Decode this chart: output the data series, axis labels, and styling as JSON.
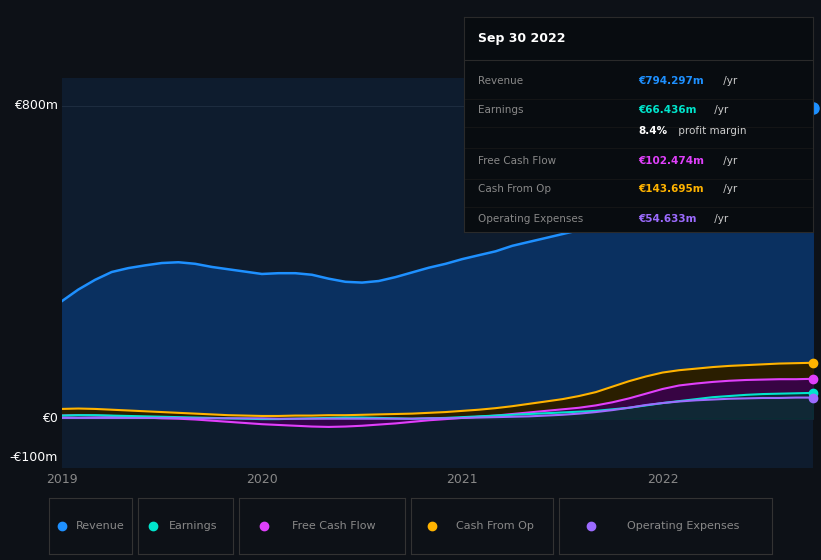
{
  "bg_color": "#0d1117",
  "plot_bg_color": "#0e1c2e",
  "grid_color": "#1e2d40",
  "text_color": "#888888",
  "white_color": "#ffffff",
  "series_colors": {
    "Revenue": "#1e90ff",
    "Revenue_fill": "#0a3060",
    "Earnings": "#00e5cc",
    "Earnings_fill": "#003830",
    "Free Cash Flow": "#e040fb",
    "Free Cash Flow_fill": "#3a0050",
    "Cash From Op": "#ffb300",
    "Cash From Op_fill": "#2a1e00",
    "Operating Expenses": "#9c6bff",
    "Operating Expenses_fill": "#1e0a40"
  },
  "x": [
    2019.0,
    2019.083,
    2019.167,
    2019.25,
    2019.333,
    2019.417,
    2019.5,
    2019.583,
    2019.667,
    2019.75,
    2019.833,
    2019.917,
    2020.0,
    2020.083,
    2020.167,
    2020.25,
    2020.333,
    2020.417,
    2020.5,
    2020.583,
    2020.667,
    2020.75,
    2020.833,
    2020.917,
    2021.0,
    2021.083,
    2021.167,
    2021.25,
    2021.333,
    2021.417,
    2021.5,
    2021.583,
    2021.667,
    2021.75,
    2021.833,
    2021.917,
    2022.0,
    2022.083,
    2022.167,
    2022.25,
    2022.333,
    2022.417,
    2022.5,
    2022.583,
    2022.667,
    2022.75
  ],
  "Revenue": [
    300,
    330,
    355,
    375,
    385,
    392,
    398,
    400,
    396,
    388,
    382,
    376,
    370,
    372,
    372,
    368,
    358,
    350,
    348,
    352,
    362,
    374,
    386,
    396,
    408,
    418,
    428,
    442,
    452,
    462,
    472,
    482,
    494,
    510,
    528,
    550,
    578,
    608,
    638,
    665,
    695,
    726,
    752,
    770,
    785,
    794
  ],
  "Earnings": [
    8,
    9,
    9,
    8,
    7,
    6,
    5,
    4,
    3,
    2,
    1,
    0,
    -1,
    -1,
    0,
    1,
    2,
    3,
    3,
    2,
    1,
    0,
    1,
    2,
    4,
    6,
    8,
    10,
    12,
    14,
    16,
    18,
    20,
    24,
    28,
    34,
    40,
    45,
    50,
    55,
    58,
    61,
    63,
    64,
    65,
    66
  ],
  "Free Cash Flow": [
    8,
    9,
    8,
    7,
    5,
    3,
    1,
    0,
    -2,
    -5,
    -8,
    -11,
    -14,
    -16,
    -18,
    -20,
    -21,
    -20,
    -18,
    -15,
    -12,
    -8,
    -4,
    -1,
    2,
    5,
    8,
    12,
    16,
    20,
    24,
    28,
    34,
    42,
    52,
    64,
    76,
    85,
    90,
    94,
    97,
    99,
    100,
    101,
    101,
    102
  ],
  "Cash From Op": [
    25,
    26,
    25,
    23,
    21,
    19,
    17,
    15,
    13,
    11,
    9,
    8,
    7,
    7,
    8,
    8,
    9,
    9,
    10,
    11,
    12,
    13,
    15,
    17,
    20,
    23,
    27,
    32,
    38,
    44,
    50,
    58,
    68,
    82,
    96,
    108,
    118,
    124,
    128,
    132,
    135,
    137,
    139,
    141,
    142,
    143
  ],
  "Operating Expenses": [
    2,
    2,
    2,
    2,
    2,
    2,
    2,
    2,
    1,
    1,
    1,
    1,
    1,
    0,
    0,
    0,
    0,
    0,
    0,
    0,
    0,
    0,
    1,
    1,
    2,
    3,
    4,
    5,
    6,
    8,
    10,
    13,
    17,
    22,
    28,
    35,
    40,
    44,
    47,
    49,
    51,
    52,
    53,
    53,
    54,
    54
  ],
  "ylim_min": -125,
  "ylim_max": 870,
  "y_zero": 0,
  "y_top": 800,
  "xticks": [
    2019,
    2020,
    2021,
    2022
  ],
  "xtick_labels": [
    "2019",
    "2020",
    "2021",
    "2022"
  ],
  "info_box": {
    "title": "Sep 30 2022",
    "rows": [
      {
        "label": "Revenue",
        "value": "€794.297m",
        "unit": " /yr",
        "value_color": "#1e90ff"
      },
      {
        "label": "Earnings",
        "value": "€66.436m",
        "unit": " /yr",
        "value_color": "#00e5cc"
      },
      {
        "label": "",
        "value": "8.4%",
        "unit": " profit margin",
        "value_color": "#ffffff"
      },
      {
        "label": "Free Cash Flow",
        "value": "€102.474m",
        "unit": " /yr",
        "value_color": "#e040fb"
      },
      {
        "label": "Cash From Op",
        "value": "€143.695m",
        "unit": " /yr",
        "value_color": "#ffb300"
      },
      {
        "label": "Operating Expenses",
        "value": "€54.633m",
        "unit": " /yr",
        "value_color": "#9c6bff"
      }
    ]
  },
  "legend": [
    {
      "label": "Revenue",
      "color": "#1e90ff"
    },
    {
      "label": "Earnings",
      "color": "#00e5cc"
    },
    {
      "label": "Free Cash Flow",
      "color": "#e040fb"
    },
    {
      "label": "Cash From Op",
      "color": "#ffb300"
    },
    {
      "label": "Operating Expenses",
      "color": "#9c6bff"
    }
  ]
}
